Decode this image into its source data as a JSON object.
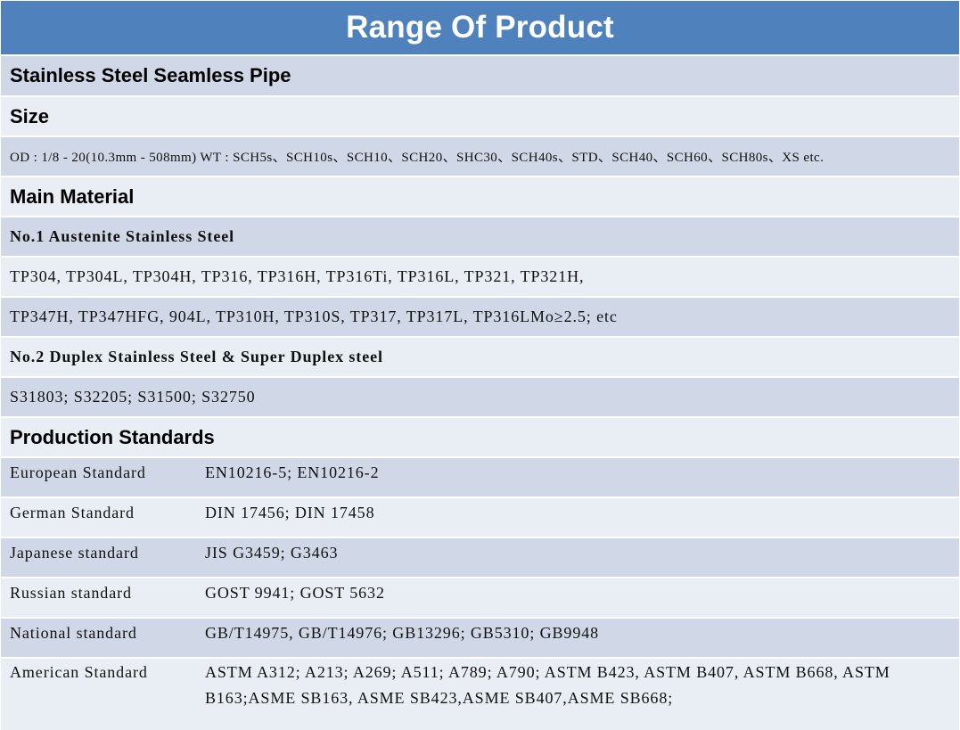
{
  "title": "Range Of Product",
  "product_name": "Stainless Steel Seamless Pipe",
  "size": {
    "heading": "Size",
    "text": "OD : 1/8 - 20(10.3mm - 508mm)   WT : SCH5s、SCH10s、SCH10、SCH20、SHC30、SCH40s、STD、SCH40、SCH60、SCH80s、XS etc."
  },
  "main_material": {
    "heading": "Main Material",
    "group1_title": "No.1 Austenite Stainless Steel",
    "group1_line1": "TP304, TP304L, TP304H, TP316, TP316H, TP316Ti, TP316L, TP321, TP321H,",
    "group1_line2": "TP347H, TP347HFG, 904L, TP310H, TP310S, TP317, TP317L, TP316LMo≥2.5; etc",
    "group2_title": "No.2 Duplex Stainless Steel & Super Duplex steel",
    "group2_line1": "S31803; S32205; S31500; S32750"
  },
  "production_standards": {
    "heading": "Production Standards",
    "rows": [
      {
        "name": "European Standard",
        "value": "EN10216-5; EN10216-2"
      },
      {
        "name": "German Standard",
        "value": "DIN 17456; DIN 17458"
      },
      {
        "name": "Japanese standard",
        "value": "JIS G3459; G3463"
      },
      {
        "name": "Russian standard",
        "value": "GOST 9941; GOST 5632"
      },
      {
        "name": "National standard",
        "value": "GB/T14975, GB/T14976; GB13296; GB5310; GB9948"
      },
      {
        "name": "American Standard",
        "value": "ASTM A312; A213; A269; A511; A789; A790; ASTM B423, ASTM B407, ASTM B668, ASTM B163;ASME SB163, ASME SB423,ASME SB407,ASME SB668;"
      }
    ]
  },
  "colors": {
    "title_band": "#4f81bd",
    "row_dark": "#d0d8e8",
    "row_light": "#e9edf4",
    "divider": "#ffffff"
  }
}
